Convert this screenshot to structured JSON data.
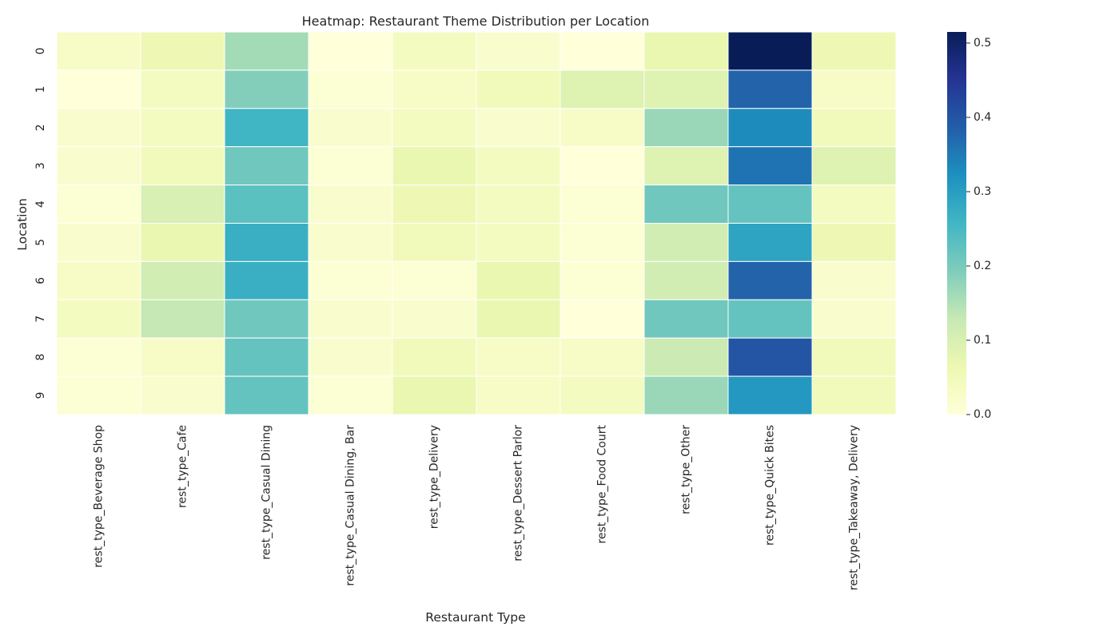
{
  "chart_data": {
    "type": "heatmap",
    "title": "Heatmap: Restaurant Theme Distribution per Location",
    "xlabel": "Restaurant Type",
    "ylabel": "Location",
    "x": [
      "rest_type_Beverage Shop",
      "rest_type_Cafe",
      "rest_type_Casual Dining",
      "rest_type_Casual Dining, Bar",
      "rest_type_Delivery",
      "rest_type_Dessert Parlor",
      "rest_type_Food Court",
      "rest_type_Other",
      "rest_type_Quick Bites",
      "rest_type_Takeaway, Delivery"
    ],
    "y": [
      "0",
      "1",
      "2",
      "3",
      "4",
      "5",
      "6",
      "7",
      "8",
      "9"
    ],
    "values": [
      [
        0.03,
        0.06,
        0.16,
        0.0,
        0.04,
        0.02,
        0.0,
        0.07,
        0.52,
        0.06
      ],
      [
        0.0,
        0.04,
        0.19,
        0.01,
        0.03,
        0.05,
        0.09,
        0.09,
        0.38,
        0.03
      ],
      [
        0.02,
        0.04,
        0.26,
        0.02,
        0.04,
        0.02,
        0.03,
        0.17,
        0.33,
        0.05
      ],
      [
        0.02,
        0.05,
        0.21,
        0.01,
        0.07,
        0.04,
        0.0,
        0.09,
        0.36,
        0.09
      ],
      [
        0.01,
        0.1,
        0.23,
        0.02,
        0.06,
        0.04,
        0.01,
        0.21,
        0.22,
        0.04
      ],
      [
        0.02,
        0.07,
        0.27,
        0.02,
        0.05,
        0.04,
        0.01,
        0.11,
        0.29,
        0.06
      ],
      [
        0.03,
        0.11,
        0.27,
        0.01,
        0.01,
        0.07,
        0.01,
        0.11,
        0.38,
        0.02
      ],
      [
        0.04,
        0.13,
        0.21,
        0.02,
        0.02,
        0.07,
        0.0,
        0.21,
        0.22,
        0.02
      ],
      [
        0.01,
        0.03,
        0.22,
        0.02,
        0.05,
        0.03,
        0.03,
        0.12,
        0.4,
        0.05
      ],
      [
        0.01,
        0.02,
        0.22,
        0.01,
        0.07,
        0.03,
        0.04,
        0.17,
        0.31,
        0.05
      ]
    ],
    "colormap": "YlGnBu",
    "colorbar": {
      "min": 0.0,
      "max": 0.515,
      "ticks": [
        0.0,
        0.1,
        0.2,
        0.3,
        0.4,
        0.5
      ],
      "tick_labels": [
        "0.0",
        "0.1",
        "0.2",
        "0.3",
        "0.4",
        "0.5"
      ]
    },
    "grid": false,
    "cell_border_color": "#ffffff"
  }
}
